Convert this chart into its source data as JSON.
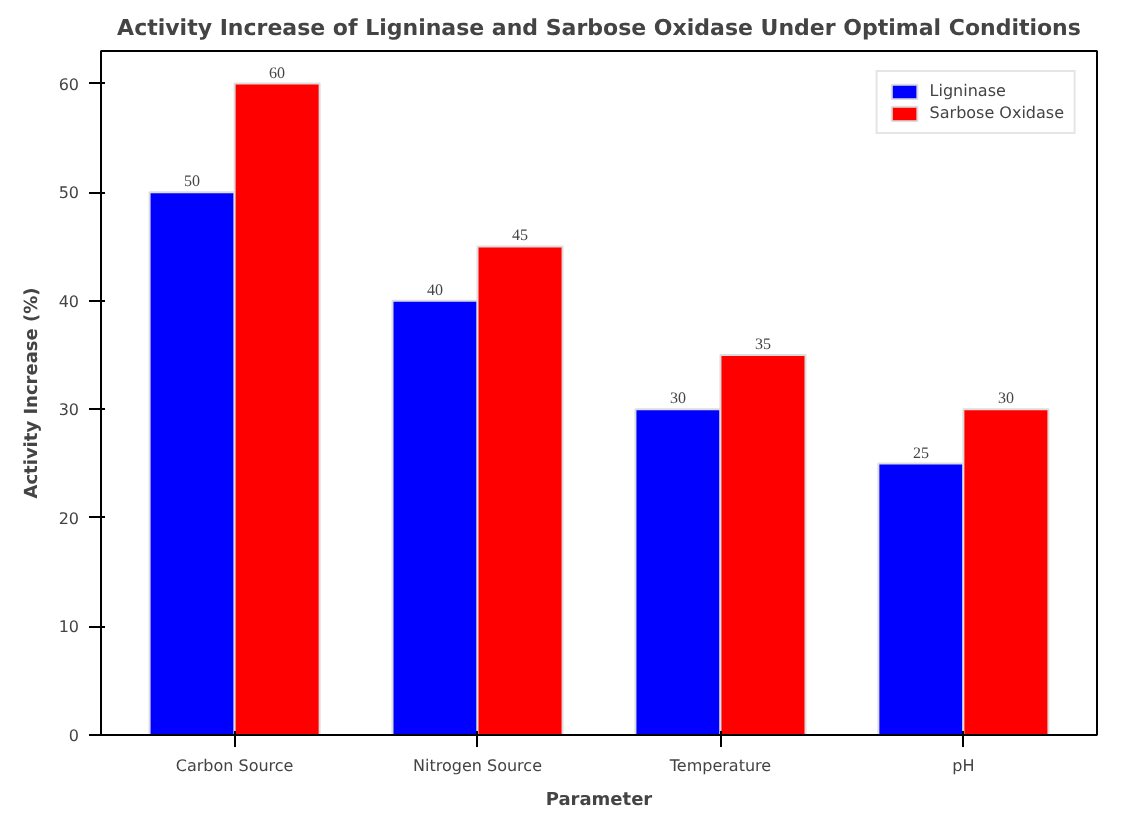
{
  "chart_data": {
    "type": "bar",
    "title": "Activity Increase of Ligninase and Sarbose Oxidase Under Optimal Conditions",
    "xlabel": "Parameter",
    "ylabel": "Activity Increase (%)",
    "categories": [
      "Carbon Source",
      "Nitrogen Source",
      "Temperature",
      "pH"
    ],
    "series": [
      {
        "name": "Ligninase",
        "color": "#0000ff",
        "values": [
          50,
          40,
          30,
          25
        ]
      },
      {
        "name": "Sarbose Oxidase",
        "color": "#ff0000",
        "values": [
          60,
          45,
          35,
          30
        ]
      }
    ],
    "ylim": [
      0,
      63
    ],
    "yticks": [
      0,
      10,
      20,
      30,
      40,
      50,
      60
    ],
    "data_labels": true,
    "legend": "top right",
    "grid": false
  }
}
